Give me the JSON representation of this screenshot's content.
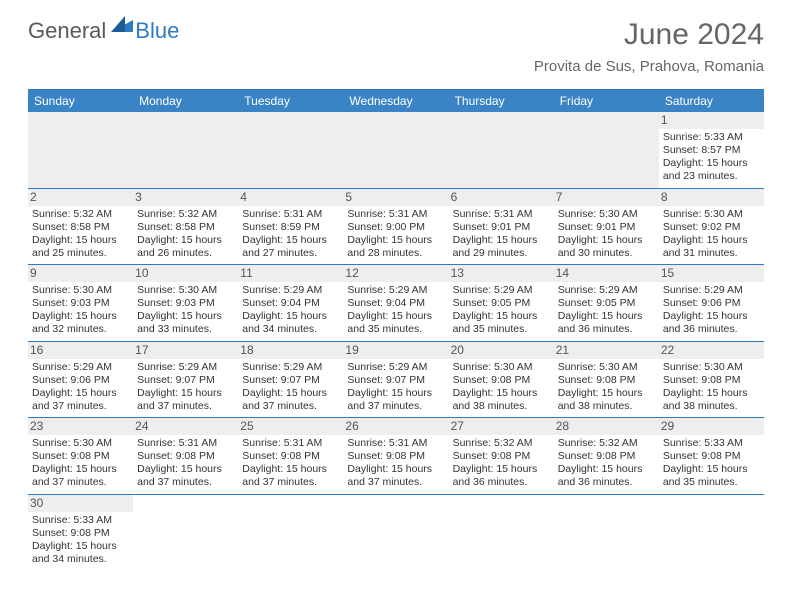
{
  "brand": {
    "main": "General",
    "accent": "Blue"
  },
  "title": {
    "month": "June 2024",
    "location": "Provita de Sus, Prahova, Romania"
  },
  "colors": {
    "header_bg": "#3a84c6",
    "rule": "#2f7ac0",
    "shade": "#eeeeee",
    "text": "#333333",
    "muted": "#666666"
  },
  "dayNames": [
    "Sunday",
    "Monday",
    "Tuesday",
    "Wednesday",
    "Thursday",
    "Friday",
    "Saturday"
  ],
  "weeks": [
    [
      null,
      null,
      null,
      null,
      null,
      null,
      {
        "n": "1",
        "sr": "5:33 AM",
        "ss": "8:57 PM",
        "dl": "15 hours and 23 minutes."
      }
    ],
    [
      {
        "n": "2",
        "sr": "5:32 AM",
        "ss": "8:58 PM",
        "dl": "15 hours and 25 minutes."
      },
      {
        "n": "3",
        "sr": "5:32 AM",
        "ss": "8:58 PM",
        "dl": "15 hours and 26 minutes."
      },
      {
        "n": "4",
        "sr": "5:31 AM",
        "ss": "8:59 PM",
        "dl": "15 hours and 27 minutes."
      },
      {
        "n": "5",
        "sr": "5:31 AM",
        "ss": "9:00 PM",
        "dl": "15 hours and 28 minutes."
      },
      {
        "n": "6",
        "sr": "5:31 AM",
        "ss": "9:01 PM",
        "dl": "15 hours and 29 minutes."
      },
      {
        "n": "7",
        "sr": "5:30 AM",
        "ss": "9:01 PM",
        "dl": "15 hours and 30 minutes."
      },
      {
        "n": "8",
        "sr": "5:30 AM",
        "ss": "9:02 PM",
        "dl": "15 hours and 31 minutes."
      }
    ],
    [
      {
        "n": "9",
        "sr": "5:30 AM",
        "ss": "9:03 PM",
        "dl": "15 hours and 32 minutes."
      },
      {
        "n": "10",
        "sr": "5:30 AM",
        "ss": "9:03 PM",
        "dl": "15 hours and 33 minutes."
      },
      {
        "n": "11",
        "sr": "5:29 AM",
        "ss": "9:04 PM",
        "dl": "15 hours and 34 minutes."
      },
      {
        "n": "12",
        "sr": "5:29 AM",
        "ss": "9:04 PM",
        "dl": "15 hours and 35 minutes."
      },
      {
        "n": "13",
        "sr": "5:29 AM",
        "ss": "9:05 PM",
        "dl": "15 hours and 35 minutes."
      },
      {
        "n": "14",
        "sr": "5:29 AM",
        "ss": "9:05 PM",
        "dl": "15 hours and 36 minutes."
      },
      {
        "n": "15",
        "sr": "5:29 AM",
        "ss": "9:06 PM",
        "dl": "15 hours and 36 minutes."
      }
    ],
    [
      {
        "n": "16",
        "sr": "5:29 AM",
        "ss": "9:06 PM",
        "dl": "15 hours and 37 minutes."
      },
      {
        "n": "17",
        "sr": "5:29 AM",
        "ss": "9:07 PM",
        "dl": "15 hours and 37 minutes."
      },
      {
        "n": "18",
        "sr": "5:29 AM",
        "ss": "9:07 PM",
        "dl": "15 hours and 37 minutes."
      },
      {
        "n": "19",
        "sr": "5:29 AM",
        "ss": "9:07 PM",
        "dl": "15 hours and 37 minutes."
      },
      {
        "n": "20",
        "sr": "5:30 AM",
        "ss": "9:08 PM",
        "dl": "15 hours and 38 minutes."
      },
      {
        "n": "21",
        "sr": "5:30 AM",
        "ss": "9:08 PM",
        "dl": "15 hours and 38 minutes."
      },
      {
        "n": "22",
        "sr": "5:30 AM",
        "ss": "9:08 PM",
        "dl": "15 hours and 38 minutes."
      }
    ],
    [
      {
        "n": "23",
        "sr": "5:30 AM",
        "ss": "9:08 PM",
        "dl": "15 hours and 37 minutes."
      },
      {
        "n": "24",
        "sr": "5:31 AM",
        "ss": "9:08 PM",
        "dl": "15 hours and 37 minutes."
      },
      {
        "n": "25",
        "sr": "5:31 AM",
        "ss": "9:08 PM",
        "dl": "15 hours and 37 minutes."
      },
      {
        "n": "26",
        "sr": "5:31 AM",
        "ss": "9:08 PM",
        "dl": "15 hours and 37 minutes."
      },
      {
        "n": "27",
        "sr": "5:32 AM",
        "ss": "9:08 PM",
        "dl": "15 hours and 36 minutes."
      },
      {
        "n": "28",
        "sr": "5:32 AM",
        "ss": "9:08 PM",
        "dl": "15 hours and 36 minutes."
      },
      {
        "n": "29",
        "sr": "5:33 AM",
        "ss": "9:08 PM",
        "dl": "15 hours and 35 minutes."
      }
    ],
    [
      {
        "n": "30",
        "sr": "5:33 AM",
        "ss": "9:08 PM",
        "dl": "15 hours and 34 minutes."
      },
      null,
      null,
      null,
      null,
      null,
      null
    ]
  ],
  "labels": {
    "sunrise": "Sunrise: ",
    "sunset": "Sunset: ",
    "daylight": "Daylight: "
  }
}
